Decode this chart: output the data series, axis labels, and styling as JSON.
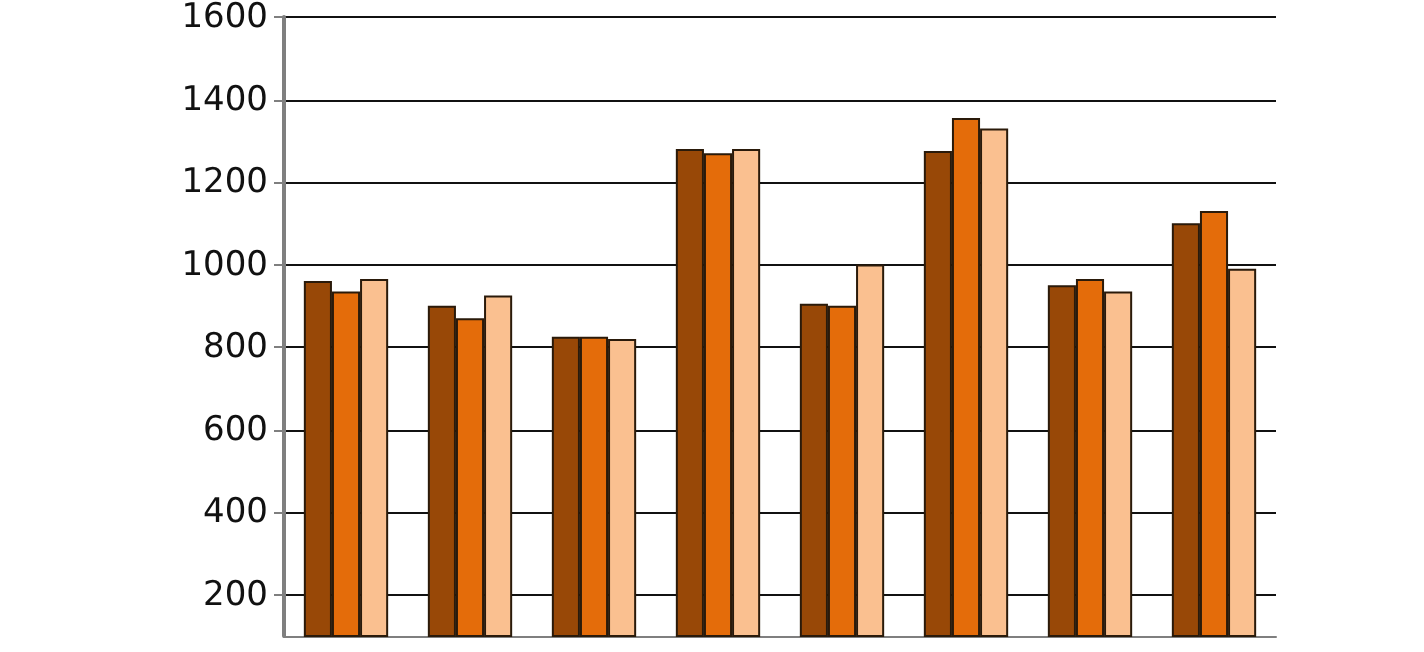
{
  "chart_data": {
    "type": "bar",
    "categories": [
      null,
      null,
      null,
      null,
      null,
      null,
      null,
      null
    ],
    "series": [
      {
        "color": "#984807",
        "values": [
          960,
          900,
          825,
          1280,
          905,
          1275,
          950,
          1100
        ]
      },
      {
        "color": "#e46c0a",
        "values": [
          935,
          870,
          825,
          1270,
          900,
          1355,
          965,
          1130
        ]
      },
      {
        "color": "#fac090",
        "values": [
          965,
          925,
          820,
          1280,
          1000,
          1330,
          935,
          990
        ]
      }
    ],
    "ylim": [
      100,
      1600
    ],
    "yticks": [
      200,
      400,
      600,
      800,
      1000,
      1200,
      1400,
      1600
    ],
    "grid": "y"
  }
}
